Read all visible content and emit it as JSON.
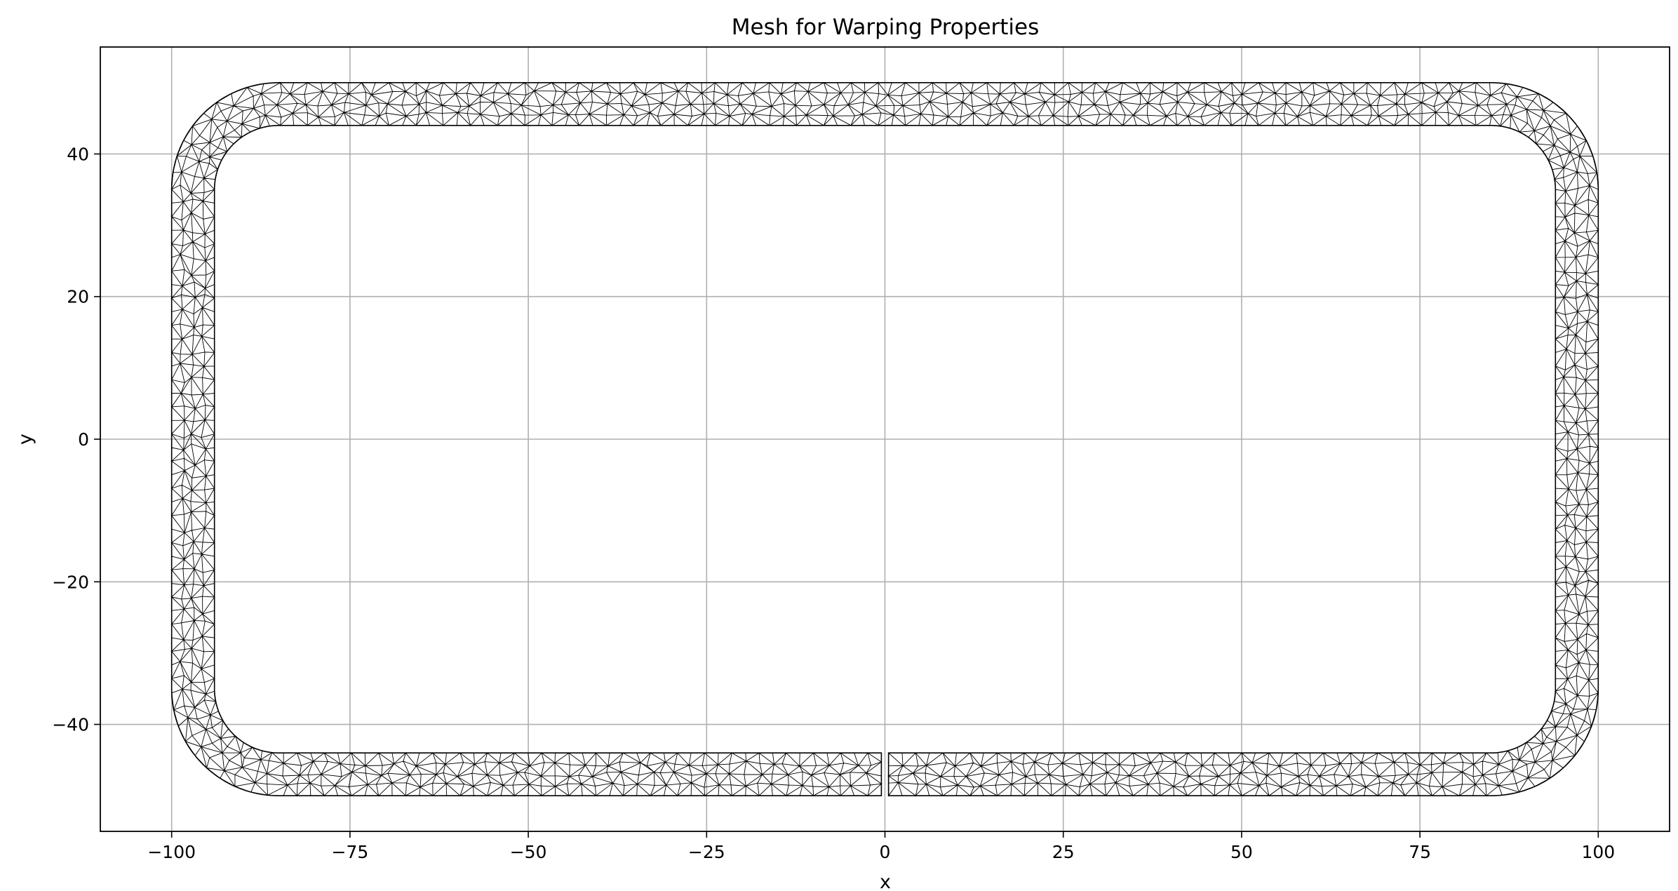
{
  "chart_data": {
    "type": "scatter",
    "title": "Mesh for Warping Properties",
    "xlabel": "x",
    "ylabel": "y",
    "xlim": [
      -110,
      110
    ],
    "ylim": [
      -55,
      55
    ],
    "x_ticks": [
      -100,
      -75,
      -50,
      -25,
      0,
      25,
      50,
      75,
      100
    ],
    "y_ticks": [
      -40,
      -20,
      0,
      20,
      40
    ],
    "x_tick_labels": [
      "−100",
      "−75",
      "−50",
      "−25",
      "0",
      "25",
      "50",
      "75",
      "100"
    ],
    "y_tick_labels": [
      "−40",
      "−20",
      "0",
      "20",
      "40"
    ],
    "grid": true,
    "legend": "none",
    "mesh_color": "#000000",
    "grid_color": "#b0b0b0",
    "section": {
      "shape": "rounded rectangular hollow section with slit",
      "outer_half_width": 100,
      "outer_half_height": 50,
      "outer_corner_radius": 15,
      "wall_thickness": 6,
      "slit_x": [
        -0.5,
        0.5
      ],
      "slit_side": "bottom"
    }
  }
}
